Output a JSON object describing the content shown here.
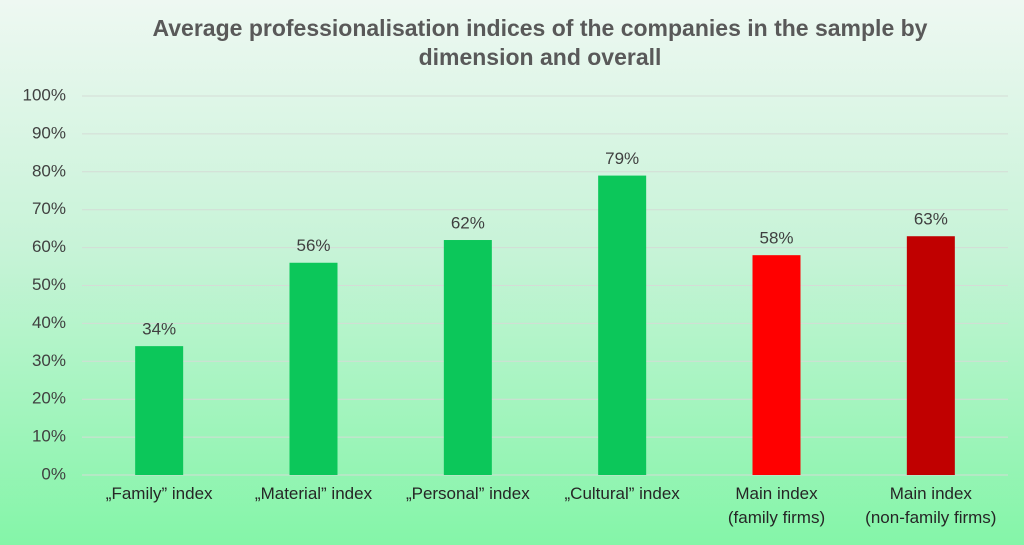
{
  "chart_data": {
    "type": "bar",
    "title": "Average professionalisation indices of the companies in the sample by dimension and overall",
    "categories": [
      "„Family” index",
      "„Material” index",
      "„Personal” index",
      "„Cultural” index",
      "Main index\n(family firms)",
      "Main index\n(non-family firms)"
    ],
    "values": [
      34,
      56,
      62,
      79,
      58,
      63
    ],
    "value_labels": [
      "34%",
      "56%",
      "62%",
      "79%",
      "58%",
      "63%"
    ],
    "colors": [
      "#0cc75a",
      "#0cc75a",
      "#0cc75a",
      "#0cc75a",
      "#ff0000",
      "#c00000"
    ],
    "ylim": [
      0,
      100
    ],
    "yticks": [
      {
        "value": 0,
        "label": "0%"
      },
      {
        "value": 10,
        "label": "10%"
      },
      {
        "value": 20,
        "label": "20%"
      },
      {
        "value": 30,
        "label": "30%"
      },
      {
        "value": 40,
        "label": "40%"
      },
      {
        "value": 50,
        "label": "50%"
      },
      {
        "value": 60,
        "label": "60%"
      },
      {
        "value": 70,
        "label": "70%"
      },
      {
        "value": 80,
        "label": "80%"
      },
      {
        "value": 90,
        "label": "90%"
      },
      {
        "value": 100,
        "label": "100%"
      }
    ],
    "grid": true
  }
}
